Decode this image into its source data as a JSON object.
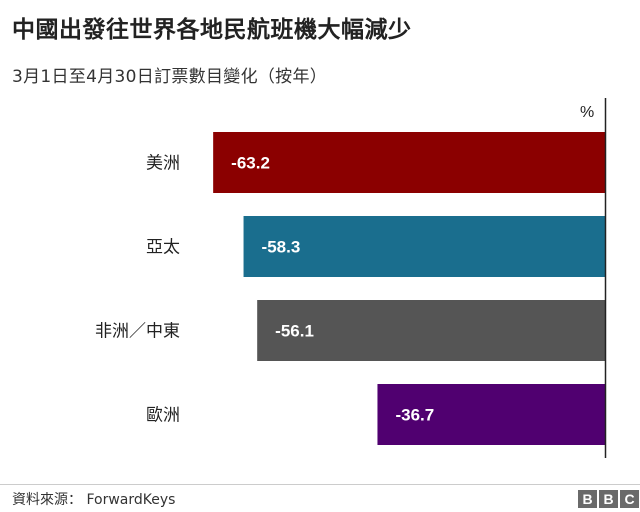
{
  "title": "中國出發往世界各地民航班機大幅減少",
  "subtitle": "3月1日至4月30日訂票數目變化（按年）",
  "source": "資料來源：  ForwardKeys",
  "logo": [
    "B",
    "B",
    "C"
  ],
  "chart_data": {
    "type": "bar",
    "orientation": "horizontal",
    "unit_label": "%",
    "categories": [
      "美洲",
      "亞太",
      "非洲／中東",
      "歐洲"
    ],
    "values": [
      -63.2,
      -58.3,
      -56.1,
      -36.7
    ],
    "value_labels": [
      "-63.2",
      "-58.3",
      "-56.1",
      "-36.7"
    ],
    "colors": [
      "#8b0000",
      "#1a6e8e",
      "#555555",
      "#500070"
    ],
    "xlim": [
      -70,
      0
    ],
    "grid": false,
    "legend": "none"
  }
}
